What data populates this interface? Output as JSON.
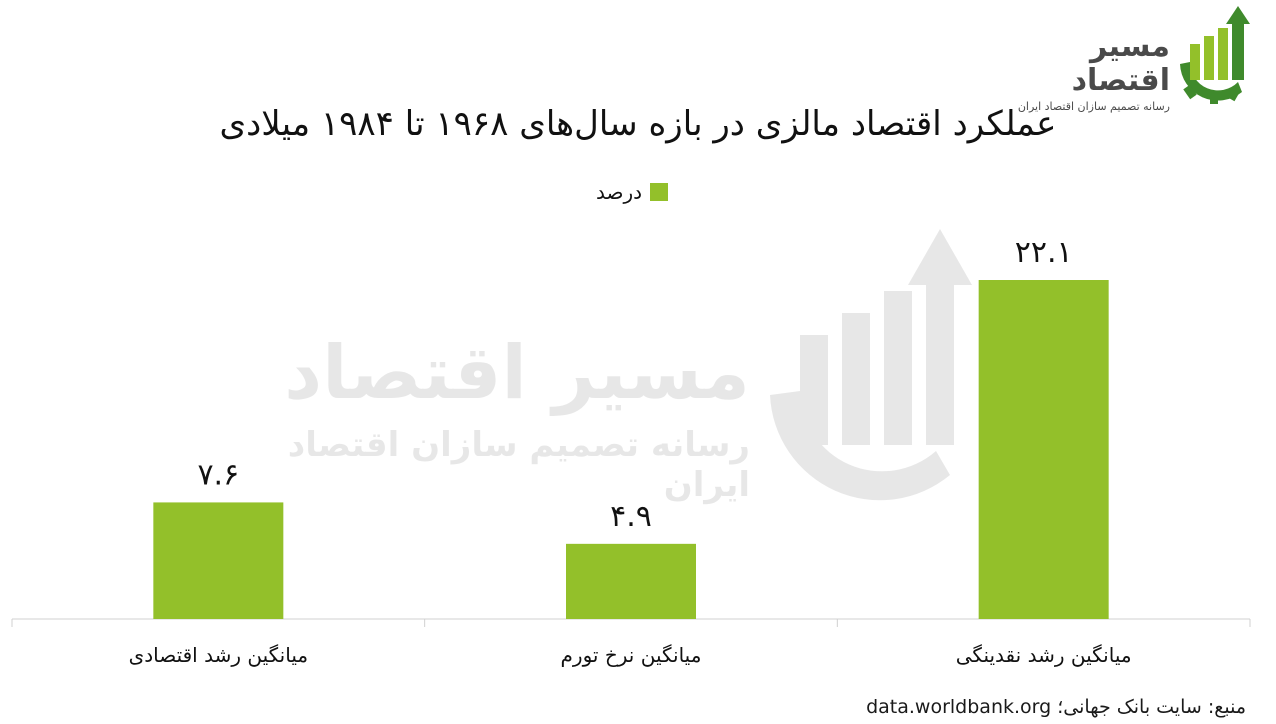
{
  "brand": {
    "name": "مسیر اقتصاد",
    "tagline": "رسانه تصمیم سازان اقتصاد ایران",
    "accent": "#93c02a",
    "dark": "#3f8a2c"
  },
  "source_text": "منبع: سایت بانک جهانی؛ data.worldbank.org",
  "chart_data": {
    "type": "bar",
    "title": "عملکرد اقتصاد مالزی در بازه سال‌های ۱۹۶۸ تا ۱۹۸۴ میلادی",
    "legend": {
      "label": "درصد",
      "placement": "top-center"
    },
    "categories": [
      "میانگین رشد اقتصادی",
      "میانگین نرخ تورم",
      "میانگین رشد نقدینگی"
    ],
    "series": [
      {
        "name": "درصد",
        "values": [
          7.6,
          4.9,
          22.1
        ],
        "data_labels": [
          "۷.۶",
          "۴.۹",
          "۲۲.۱"
        ]
      }
    ],
    "ylim": [
      0,
      24
    ],
    "grid": false,
    "bar_color": "#93c02a"
  }
}
